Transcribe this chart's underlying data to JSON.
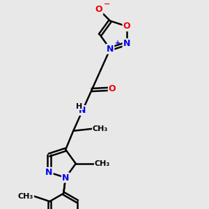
{
  "background_color": "#e8e8e8",
  "bond_color": "#000000",
  "bond_width": 1.8,
  "N_color": "#0000ee",
  "O_color": "#ee0000",
  "font_size_atom": 9,
  "font_size_small": 8,
  "figsize": [
    3.0,
    3.0
  ],
  "dpi": 100,
  "xlim": [
    0,
    10
  ],
  "ylim": [
    0,
    10
  ]
}
